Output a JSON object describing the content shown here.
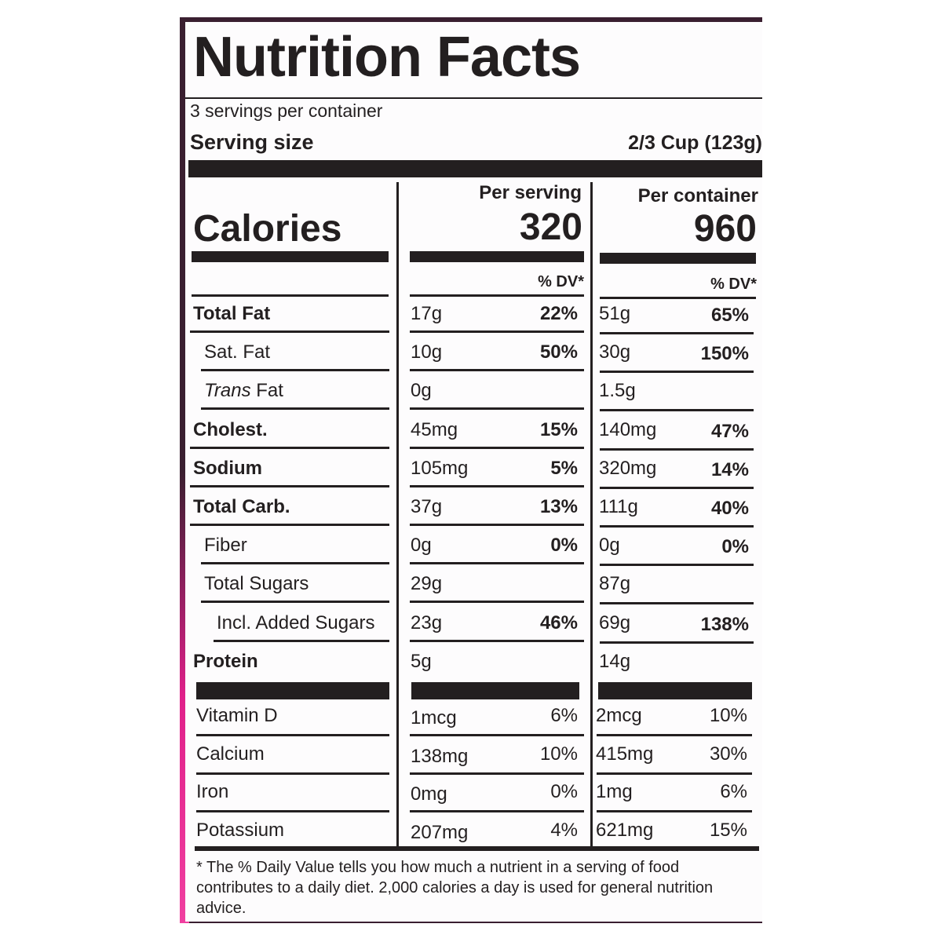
{
  "title": "Nutrition Facts",
  "servings_per_container": "3 servings per container",
  "serving_size": {
    "label": "Serving size",
    "value": "2/3 Cup (123g)"
  },
  "calories": {
    "label": "Calories",
    "per_serving_header": "Per serving",
    "per_container_header": "Per container",
    "per_serving": "320",
    "per_container": "960"
  },
  "dv_header": "% DV*",
  "nutrients": [
    {
      "name": "Total Fat",
      "bold": true,
      "indent": 0,
      "serving": "17g",
      "serving_dv": "22%",
      "container": "51g",
      "container_dv": "65%"
    },
    {
      "name": "Sat. Fat",
      "bold": false,
      "indent": 1,
      "serving": "10g",
      "serving_dv": "50%",
      "container": "30g",
      "container_dv": "150%"
    },
    {
      "name_italic": "Trans",
      "name": " Fat",
      "bold": false,
      "indent": 1,
      "serving": "0g",
      "serving_dv": "",
      "container": "1.5g",
      "container_dv": ""
    },
    {
      "name": "Cholest.",
      "bold": true,
      "indent": 0,
      "serving": "45mg",
      "serving_dv": "15%",
      "container": "140mg",
      "container_dv": "47%"
    },
    {
      "name": "Sodium",
      "bold": true,
      "indent": 0,
      "serving": "105mg",
      "serving_dv": "5%",
      "container": "320mg",
      "container_dv": "14%"
    },
    {
      "name": "Total Carb.",
      "bold": true,
      "indent": 0,
      "serving": "37g",
      "serving_dv": "13%",
      "container": "111g",
      "container_dv": "40%"
    },
    {
      "name": "Fiber",
      "bold": false,
      "indent": 1,
      "serving": "0g",
      "serving_dv": "0%",
      "container": "0g",
      "container_dv": "0%"
    },
    {
      "name": "Total Sugars",
      "bold": false,
      "indent": 1,
      "serving": "29g",
      "serving_dv": "",
      "container": "87g",
      "container_dv": ""
    },
    {
      "name": "Incl. Added Sugars",
      "bold": false,
      "indent": 2,
      "serving": "23g",
      "serving_dv": "46%",
      "container": "69g",
      "container_dv": "138%"
    },
    {
      "name": "Protein",
      "bold": true,
      "indent": 0,
      "serving": "5g",
      "serving_dv": "",
      "container": "14g",
      "container_dv": ""
    }
  ],
  "vitamins": [
    {
      "name": "Vitamin D",
      "serving": "1mcg",
      "serving_dv": "6%",
      "container": "2mcg",
      "container_dv": "10%"
    },
    {
      "name": "Calcium",
      "serving": "138mg",
      "serving_dv": "10%",
      "container": "415mg",
      "container_dv": "30%"
    },
    {
      "name": "Iron",
      "serving": "0mg",
      "serving_dv": "0%",
      "container": "1mg",
      "container_dv": "6%"
    },
    {
      "name": "Potassium",
      "serving": "207mg",
      "serving_dv": "4%",
      "container": "621mg",
      "container_dv": "15%"
    }
  ],
  "footnote": "* The % Daily Value tells you how much a nutrient in a serving of food contributes to a daily diet. 2,000 calories a day is used for general nutrition advice.",
  "colors": {
    "ink": "#231f20",
    "frame": "#3a1f30",
    "accent": "#e0208a"
  }
}
